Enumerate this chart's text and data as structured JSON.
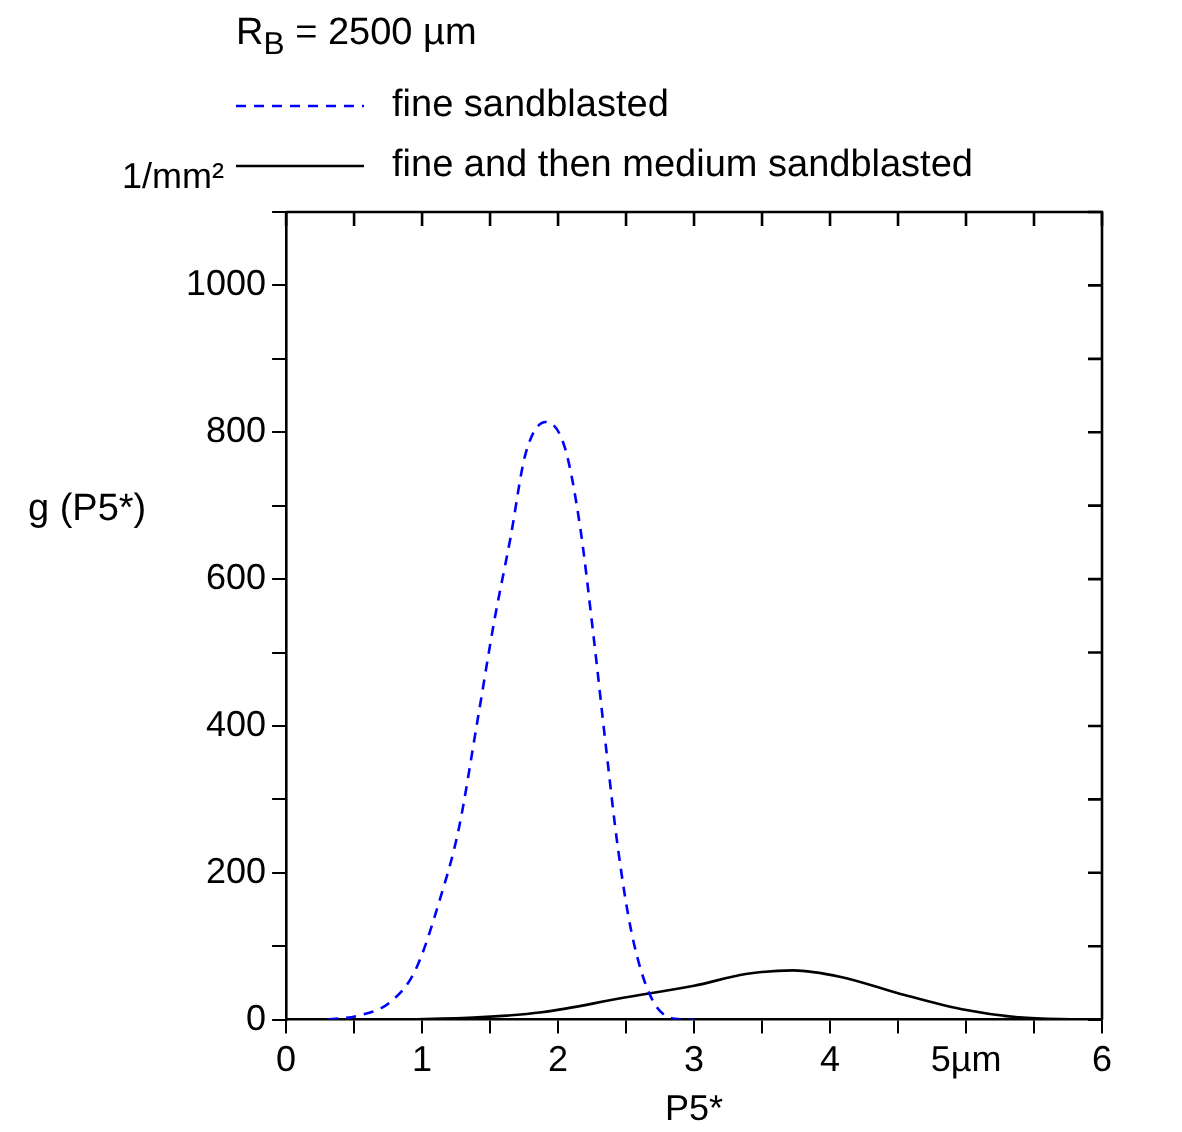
{
  "chart_data": {
    "type": "line",
    "legend_title": "R$_{B}$ = 2500 µm",
    "xlabel": "P5*",
    "ylabel": "g (P5*)",
    "xlim": [
      0,
      6
    ],
    "xticks": [
      0,
      {
        "value": 0.5,
        "label": null
      },
      1,
      {
        "value": 1.5,
        "label": null
      },
      2,
      {
        "value": 2.5,
        "label": null
      },
      3,
      {
        "value": 3.5,
        "label": null
      },
      4,
      {
        "value": 4.5,
        "label": null
      },
      {
        "value": 5,
        "label": "5µm"
      },
      {
        "value": 5.5,
        "label": null
      },
      6
    ],
    "ylim": [
      0,
      1100
    ],
    "yticks": [
      0,
      {
        "value": 100,
        "label": null
      },
      200,
      {
        "value": 300,
        "label": null
      },
      400,
      {
        "value": 500,
        "label": null
      },
      600,
      {
        "value": 700,
        "label": null
      },
      800,
      {
        "value": 900,
        "label": null
      },
      1000,
      {
        "value": 1100,
        "label": null
      }
    ],
    "annotations": [
      "1/mm²"
    ],
    "grid": false,
    "legend": "top",
    "marker": "none",
    "series": [
      {
        "name": "fine sandblasted",
        "color": "#0000ff",
        "line_style": "dashed",
        "x": [
          0.31,
          0.52,
          0.76,
          0.95,
          1.13,
          1.27,
          1.41,
          1.53,
          1.65,
          1.76,
          1.91,
          2.05,
          2.16,
          2.26,
          2.35,
          2.44,
          2.54,
          2.68,
          2.86,
          3.0
        ],
        "values": [
          0,
          5,
          23,
          67,
          163,
          260,
          410,
          542,
          656,
          770,
          814,
          779,
          674,
          524,
          375,
          234,
          119,
          32,
          1,
          0
        ]
      },
      {
        "name": "fine and then medium sandblasted",
        "color": "#000000",
        "line_style": "solid",
        "x": [
          0.83,
          1.41,
          1.88,
          2.49,
          3.0,
          3.38,
          3.73,
          4.08,
          4.5,
          4.97,
          5.39,
          5.84
        ],
        "values": [
          0,
          3,
          10,
          30,
          46,
          62,
          67,
          58,
          36,
          14,
          3,
          0
        ]
      }
    ]
  }
}
